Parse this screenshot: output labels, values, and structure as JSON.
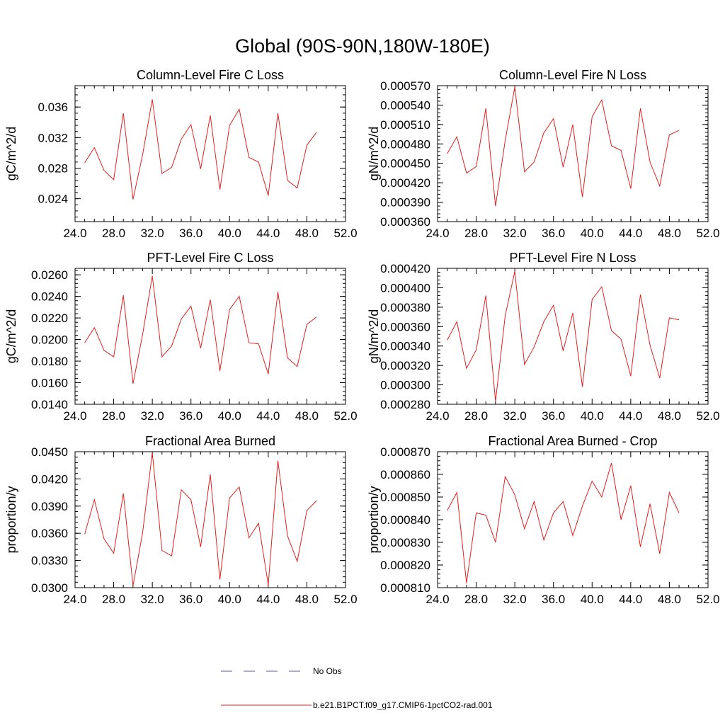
{
  "main_title": "Global (90S-90N,180W-180E)",
  "legend": [
    {
      "label": "No Obs",
      "color": "#5b5ba6",
      "dash": true
    },
    {
      "label": "b.e21.B1PCT.f09_g17.CMIP6-1pctCO2-rad.001",
      "color": "#e02020",
      "dash": false
    }
  ],
  "chart_data": [
    {
      "type": "line",
      "title": "Column-Level Fire C Loss",
      "ylabel": "gC/m^2/d",
      "xlim": [
        24,
        52
      ],
      "ylim": [
        0.021,
        0.0388
      ],
      "xticks": [
        "24.0",
        "28.0",
        "32.0",
        "36.0",
        "40.0",
        "44.0",
        "48.0",
        "52.0"
      ],
      "yticks": [
        {
          "v": 0.024,
          "label": "0.024"
        },
        {
          "v": 0.028,
          "label": "0.028"
        },
        {
          "v": 0.032,
          "label": "0.032"
        },
        {
          "v": 0.036,
          "label": "0.036"
        }
      ],
      "series": [
        {
          "name": "b.e21.B1PCT.f09_g17.CMIP6-1pctCO2-rad.001",
          "x": [
            25,
            26,
            27,
            28,
            29,
            30,
            31,
            32,
            33,
            34,
            35,
            36,
            37,
            38,
            39,
            40,
            41,
            42,
            43,
            44,
            45,
            46,
            47,
            48,
            49
          ],
          "values": [
            0.0287,
            0.0307,
            0.0277,
            0.0265,
            0.0352,
            0.0239,
            0.0298,
            0.037,
            0.0273,
            0.0281,
            0.0318,
            0.0337,
            0.0279,
            0.0349,
            0.0252,
            0.0336,
            0.0357,
            0.0294,
            0.0288,
            0.0244,
            0.0352,
            0.0264,
            0.0254,
            0.031,
            0.0327
          ]
        }
      ]
    },
    {
      "type": "line",
      "title": "Column-Level Fire N Loss",
      "ylabel": "gN/m^2/d",
      "xlim": [
        24,
        52
      ],
      "ylim": [
        0.00036,
        0.00057
      ],
      "xticks": [
        "24.0",
        "28.0",
        "32.0",
        "36.0",
        "40.0",
        "44.0",
        "48.0",
        "52.0"
      ],
      "yticks": [
        {
          "v": 0.00036,
          "label": "0.000360"
        },
        {
          "v": 0.00039,
          "label": "0.000390"
        },
        {
          "v": 0.00042,
          "label": "0.000420"
        },
        {
          "v": 0.00045,
          "label": "0.000450"
        },
        {
          "v": 0.00048,
          "label": "0.000480"
        },
        {
          "v": 0.00051,
          "label": "0.000510"
        },
        {
          "v": 0.00054,
          "label": "0.000540"
        },
        {
          "v": 0.00057,
          "label": "0.000570"
        }
      ],
      "series": [
        {
          "name": "b.e21.B1PCT.f09_g17.CMIP6-1pctCO2-rad.001",
          "x": [
            25,
            26,
            27,
            28,
            29,
            30,
            31,
            32,
            33,
            34,
            35,
            36,
            37,
            38,
            39,
            40,
            41,
            42,
            43,
            44,
            45,
            46,
            47,
            48,
            49
          ],
          "values": [
            0.000465,
            0.000491,
            0.000435,
            0.000445,
            0.000535,
            0.000384,
            0.000485,
            0.000568,
            0.000437,
            0.000452,
            0.000497,
            0.000519,
            0.000444,
            0.00051,
            0.000398,
            0.000522,
            0.000548,
            0.000477,
            0.00047,
            0.000411,
            0.000535,
            0.000452,
            0.000415,
            0.000494,
            0.000501
          ]
        }
      ]
    },
    {
      "type": "line",
      "title": "PFT-Level Fire C Loss",
      "ylabel": "gC/m^2/d",
      "xlim": [
        24,
        52
      ],
      "ylim": [
        0.014,
        0.0266
      ],
      "xticks": [
        "24.0",
        "28.0",
        "32.0",
        "36.0",
        "40.0",
        "44.0",
        "48.0",
        "52.0"
      ],
      "yticks": [
        {
          "v": 0.014,
          "label": "0.0140"
        },
        {
          "v": 0.016,
          "label": "0.0160"
        },
        {
          "v": 0.018,
          "label": "0.0180"
        },
        {
          "v": 0.02,
          "label": "0.0200"
        },
        {
          "v": 0.022,
          "label": "0.0220"
        },
        {
          "v": 0.024,
          "label": "0.0240"
        },
        {
          "v": 0.026,
          "label": "0.0260"
        }
      ],
      "series": [
        {
          "name": "b.e21.B1PCT.f09_g17.CMIP6-1pctCO2-rad.001",
          "x": [
            25,
            26,
            27,
            28,
            29,
            30,
            31,
            32,
            33,
            34,
            35,
            36,
            37,
            38,
            39,
            40,
            41,
            42,
            43,
            44,
            45,
            46,
            47,
            48,
            49
          ],
          "values": [
            0.0197,
            0.0211,
            0.019,
            0.0184,
            0.0241,
            0.0159,
            0.0205,
            0.0259,
            0.0184,
            0.0194,
            0.0219,
            0.0231,
            0.0192,
            0.0237,
            0.0171,
            0.0228,
            0.024,
            0.0197,
            0.0196,
            0.0168,
            0.0244,
            0.0183,
            0.0175,
            0.0214,
            0.0221
          ]
        }
      ]
    },
    {
      "type": "line",
      "title": "PFT-Level Fire N Loss",
      "ylabel": "gN/m^2/d",
      "xlim": [
        24,
        52
      ],
      "ylim": [
        0.00028,
        0.00042
      ],
      "xticks": [
        "24.0",
        "28.0",
        "32.0",
        "36.0",
        "40.0",
        "44.0",
        "48.0",
        "52.0"
      ],
      "yticks": [
        {
          "v": 0.00028,
          "label": "0.000280"
        },
        {
          "v": 0.0003,
          "label": "0.000300"
        },
        {
          "v": 0.00032,
          "label": "0.000320"
        },
        {
          "v": 0.00034,
          "label": "0.000340"
        },
        {
          "v": 0.00036,
          "label": "0.000360"
        },
        {
          "v": 0.00038,
          "label": "0.000380"
        },
        {
          "v": 0.0004,
          "label": "0.000400"
        },
        {
          "v": 0.00042,
          "label": "0.000420"
        }
      ],
      "series": [
        {
          "name": "b.e21.B1PCT.f09_g17.CMIP6-1pctCO2-rad.001",
          "x": [
            25,
            26,
            27,
            28,
            29,
            30,
            31,
            32,
            33,
            34,
            35,
            36,
            37,
            38,
            39,
            40,
            41,
            42,
            43,
            44,
            45,
            46,
            47,
            48,
            49
          ],
          "values": [
            0.000346,
            0.000365,
            0.000317,
            0.000336,
            0.000392,
            0.000283,
            0.000371,
            0.000417,
            0.000321,
            0.000339,
            0.000365,
            0.000382,
            0.000335,
            0.000374,
            0.000298,
            0.000388,
            0.000401,
            0.000356,
            0.000347,
            0.000309,
            0.000393,
            0.000341,
            0.000307,
            0.000369,
            0.000367
          ]
        }
      ]
    },
    {
      "type": "line",
      "title": "Fractional Area Burned",
      "ylabel": "proportion/y",
      "xlim": [
        24,
        52
      ],
      "ylim": [
        0.03,
        0.045
      ],
      "xticks": [
        "24.0",
        "28.0",
        "32.0",
        "36.0",
        "40.0",
        "44.0",
        "48.0",
        "52.0"
      ],
      "yticks": [
        {
          "v": 0.03,
          "label": "0.0300"
        },
        {
          "v": 0.033,
          "label": "0.0330"
        },
        {
          "v": 0.036,
          "label": "0.0360"
        },
        {
          "v": 0.039,
          "label": "0.0390"
        },
        {
          "v": 0.042,
          "label": "0.0420"
        },
        {
          "v": 0.045,
          "label": "0.0450"
        }
      ],
      "series": [
        {
          "name": "b.e21.B1PCT.f09_g17.CMIP6-1pctCO2-rad.001",
          "x": [
            25,
            26,
            27,
            28,
            29,
            30,
            31,
            32,
            33,
            34,
            35,
            36,
            37,
            38,
            39,
            40,
            41,
            42,
            43,
            44,
            45,
            46,
            47,
            48,
            49
          ],
          "values": [
            0.0359,
            0.0397,
            0.0354,
            0.0338,
            0.0404,
            0.0302,
            0.0361,
            0.0449,
            0.0341,
            0.0335,
            0.0408,
            0.0397,
            0.0345,
            0.0425,
            0.0309,
            0.0399,
            0.0411,
            0.0355,
            0.0371,
            0.0303,
            0.044,
            0.0357,
            0.0329,
            0.0385,
            0.0396
          ]
        }
      ]
    },
    {
      "type": "line",
      "title": "Fractional Area Burned - Crop",
      "ylabel": "proportion/y",
      "xlim": [
        24,
        52
      ],
      "ylim": [
        0.00081,
        0.00087
      ],
      "xticks": [
        "24.0",
        "28.0",
        "32.0",
        "36.0",
        "40.0",
        "44.0",
        "48.0",
        "52.0"
      ],
      "yticks": [
        {
          "v": 0.00081,
          "label": "0.000810"
        },
        {
          "v": 0.00082,
          "label": "0.000820"
        },
        {
          "v": 0.00083,
          "label": "0.000830"
        },
        {
          "v": 0.00084,
          "label": "0.000840"
        },
        {
          "v": 0.00085,
          "label": "0.000850"
        },
        {
          "v": 0.00086,
          "label": "0.000860"
        },
        {
          "v": 0.00087,
          "label": "0.000870"
        }
      ],
      "series": [
        {
          "name": "b.e21.B1PCT.f09_g17.CMIP6-1pctCO2-rad.001",
          "x": [
            25,
            26,
            27,
            28,
            29,
            30,
            31,
            32,
            33,
            34,
            35,
            36,
            37,
            38,
            39,
            40,
            41,
            42,
            43,
            44,
            45,
            46,
            47,
            48,
            49
          ],
          "values": [
            0.000844,
            0.000852,
            0.000812,
            0.000843,
            0.000842,
            0.00083,
            0.000859,
            0.000851,
            0.000836,
            0.000848,
            0.000831,
            0.000843,
            0.000848,
            0.000833,
            0.000846,
            0.000857,
            0.00085,
            0.000865,
            0.00084,
            0.000855,
            0.000828,
            0.000847,
            0.000825,
            0.000852,
            0.000843
          ]
        }
      ]
    }
  ]
}
